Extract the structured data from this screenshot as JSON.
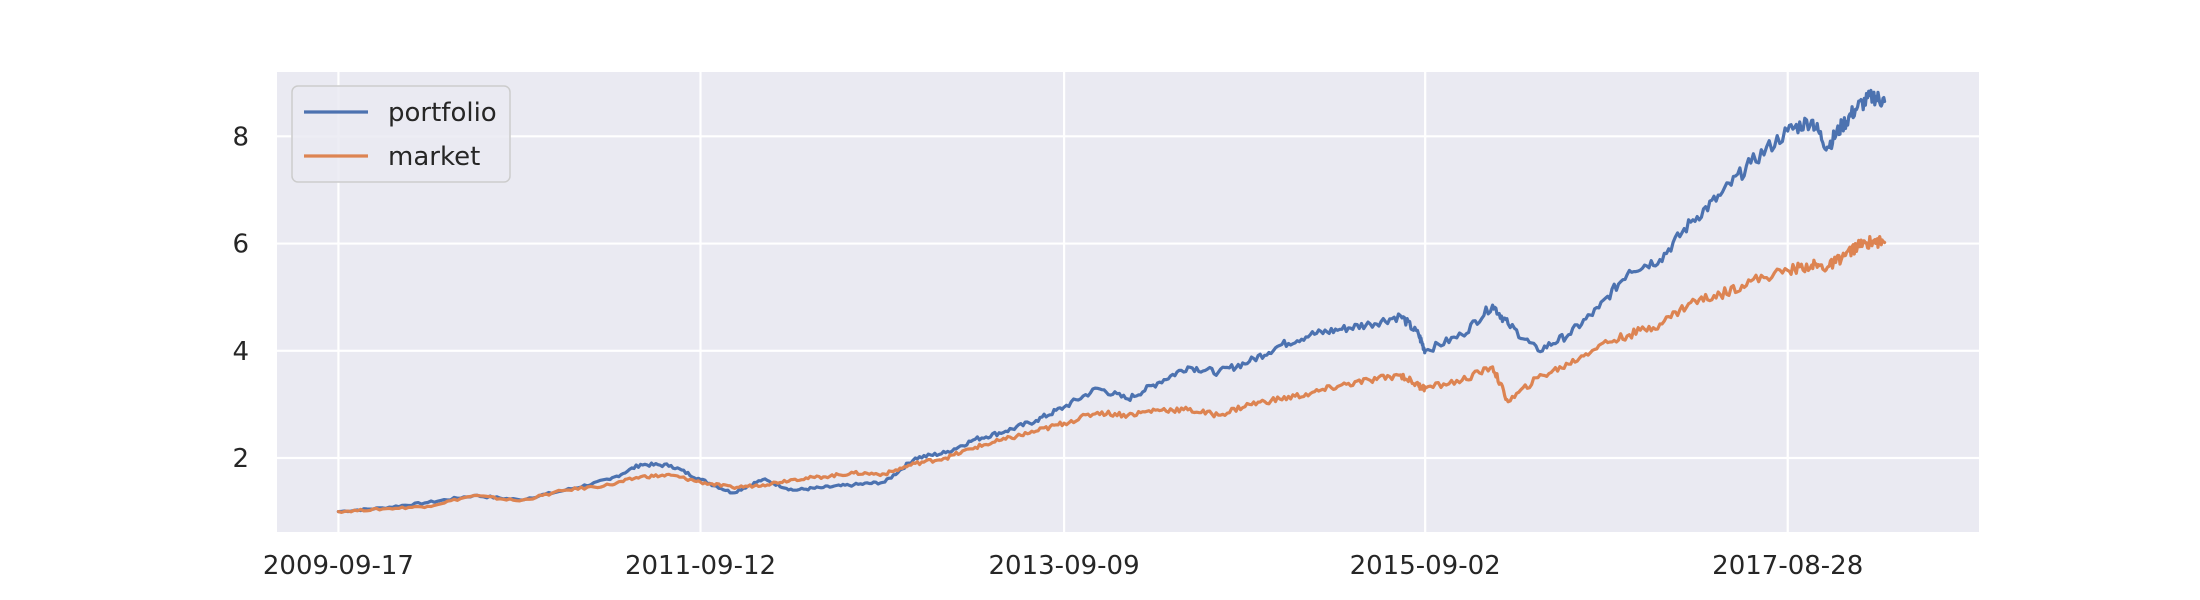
{
  "chart_data": {
    "type": "line",
    "title": "",
    "xlabel": "",
    "ylabel": "",
    "x_tick_labels": [
      "2009-09-17",
      "2011-09-12",
      "2013-09-09",
      "2015-09-02",
      "2017-08-28"
    ],
    "y_ticks": [
      2,
      4,
      6,
      8
    ],
    "xlim": [
      "2009-05-17",
      "2018-09-15"
    ],
    "ylim": [
      0.62,
      9.2
    ],
    "grid": true,
    "legend_position": "top-left",
    "background_color": "#eaeaf2",
    "grid_color": "#ffffff",
    "x": [
      "2009-09-17",
      "2009-12-15",
      "2010-03-15",
      "2010-06-15",
      "2010-09-15",
      "2010-12-15",
      "2011-03-15",
      "2011-05-15",
      "2011-07-15",
      "2011-09-12",
      "2011-11-15",
      "2012-01-15",
      "2012-03-15",
      "2012-05-15",
      "2012-07-15",
      "2012-09-15",
      "2012-11-15",
      "2013-01-15",
      "2013-03-15",
      "2013-05-15",
      "2013-07-15",
      "2013-09-09",
      "2013-11-15",
      "2014-01-15",
      "2014-03-15",
      "2014-05-15",
      "2014-07-15",
      "2014-09-15",
      "2014-11-15",
      "2015-01-15",
      "2015-03-15",
      "2015-05-15",
      "2015-07-15",
      "2015-08-20",
      "2015-09-02",
      "2015-11-15",
      "2016-01-15",
      "2016-02-15",
      "2016-04-15",
      "2016-06-15",
      "2016-08-15",
      "2016-10-15",
      "2016-12-15",
      "2017-02-15",
      "2017-04-15",
      "2017-06-15",
      "2017-08-28",
      "2017-10-15",
      "2017-11-15",
      "2017-12-15",
      "2018-01-15",
      "2018-02-15",
      "2018-03-10"
    ],
    "series": [
      {
        "name": "portfolio",
        "color": "#4c72b0",
        "values": [
          1.0,
          1.07,
          1.17,
          1.3,
          1.22,
          1.4,
          1.6,
          1.88,
          1.86,
          1.6,
          1.35,
          1.6,
          1.4,
          1.45,
          1.5,
          1.55,
          2.0,
          2.1,
          2.35,
          2.5,
          2.7,
          2.95,
          3.3,
          3.1,
          3.4,
          3.7,
          3.6,
          3.8,
          4.1,
          4.3,
          4.4,
          4.5,
          4.65,
          4.3,
          4.0,
          4.3,
          4.85,
          4.5,
          4.0,
          4.3,
          4.8,
          5.5,
          5.7,
          6.4,
          6.9,
          7.5,
          8.1,
          8.3,
          7.8,
          8.2,
          8.55,
          8.75,
          8.65
        ]
      },
      {
        "name": "market",
        "color": "#dd8452",
        "values": [
          1.0,
          1.05,
          1.1,
          1.3,
          1.2,
          1.4,
          1.5,
          1.65,
          1.68,
          1.55,
          1.45,
          1.5,
          1.6,
          1.65,
          1.72,
          1.7,
          1.9,
          2.0,
          2.2,
          2.35,
          2.5,
          2.65,
          2.85,
          2.8,
          2.9,
          2.9,
          2.8,
          3.0,
          3.1,
          3.2,
          3.35,
          3.45,
          3.55,
          3.35,
          3.3,
          3.45,
          3.7,
          3.05,
          3.5,
          3.75,
          4.1,
          4.3,
          4.5,
          4.9,
          5.05,
          5.3,
          5.5,
          5.6,
          5.55,
          5.75,
          5.95,
          6.05,
          6.02
        ]
      }
    ]
  }
}
